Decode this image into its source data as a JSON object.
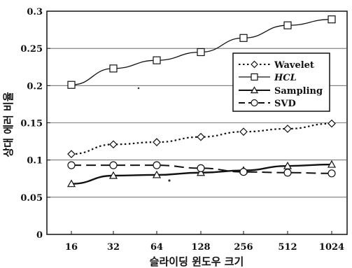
{
  "chart_data": {
    "type": "line",
    "xlabel": "슬라이딩 윈도우 크기",
    "ylabel": "상대 에러 비율",
    "categories": [
      "16",
      "32",
      "64",
      "128",
      "256",
      "512",
      "1024"
    ],
    "ylim": [
      0,
      0.3
    ],
    "yticks": [
      "0",
      "0.05",
      "0.1",
      "0.15",
      "0.2",
      "0.25",
      "0.3"
    ],
    "grid": true,
    "legend_position": "center-right",
    "series": [
      {
        "name": "Wavelet",
        "italic": false,
        "marker": "diamond",
        "dash": "dotted",
        "color": "#111111",
        "values": [
          0.108,
          0.121,
          0.124,
          0.131,
          0.138,
          0.142,
          0.149
        ]
      },
      {
        "name": "HCL",
        "italic": true,
        "marker": "square",
        "dash": "solid-thin",
        "color": "#111111",
        "values": [
          0.201,
          0.223,
          0.234,
          0.245,
          0.264,
          0.281,
          0.289
        ]
      },
      {
        "name": "Sampling",
        "italic": false,
        "marker": "triangle",
        "dash": "solid-thick",
        "color": "#111111",
        "values": [
          0.068,
          0.079,
          0.08,
          0.083,
          0.086,
          0.092,
          0.094
        ]
      },
      {
        "name": "SVD",
        "italic": false,
        "marker": "circle",
        "dash": "dashed",
        "color": "#111111",
        "values": [
          0.093,
          0.093,
          0.093,
          0.089,
          0.084,
          0.083,
          0.082
        ]
      }
    ]
  }
}
